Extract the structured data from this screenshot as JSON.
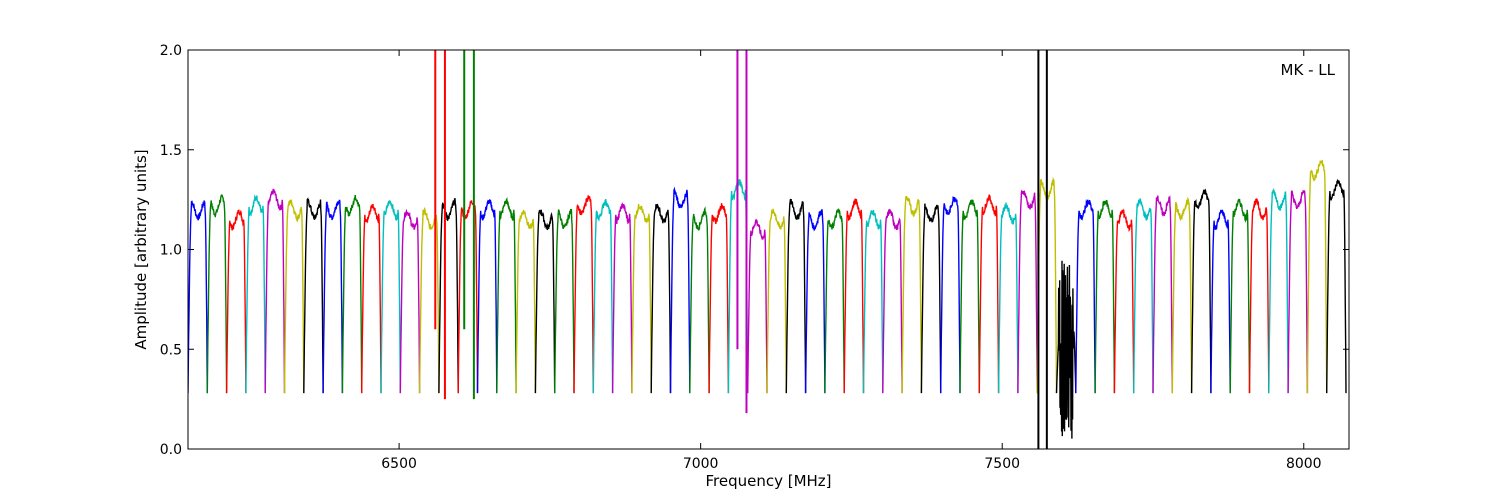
{
  "chart_data": {
    "type": "line",
    "title": "",
    "xlabel": "Frequency [MHz]",
    "ylabel": "Amplitude [arbitrary units]",
    "annotation": "MK - LL",
    "xlim": [
      6150,
      8075
    ],
    "ylim": [
      0.0,
      2.0
    ],
    "xticks": [
      6500,
      7000,
      7500,
      8000
    ],
    "xtick_labels": [
      "6500",
      "7000",
      "7500",
      "8000"
    ],
    "yticks": [
      0.0,
      0.5,
      1.0,
      1.5,
      2.0
    ],
    "ytick_labels": [
      "0.0",
      "0.5",
      "1.0",
      "1.5",
      "2.0"
    ],
    "grid": false,
    "legend": "none",
    "colors": [
      "#0000ff",
      "#008000",
      "#ff0000",
      "#00bfbf",
      "#bf00bf",
      "#bfbf00",
      "#000000"
    ],
    "channel_start_mhz": 6150,
    "channel_width_mhz": 32,
    "channel_count": 60,
    "series": [
      {
        "start": 6150,
        "end": 6182,
        "level": 1.2,
        "color": "#0000ff"
      },
      {
        "start": 6182,
        "end": 6214,
        "level": 1.22,
        "color": "#008000"
      },
      {
        "start": 6214,
        "end": 6246,
        "level": 1.15,
        "color": "#ff0000"
      },
      {
        "start": 6246,
        "end": 6278,
        "level": 1.22,
        "color": "#00bfbf"
      },
      {
        "start": 6278,
        "end": 6310,
        "level": 1.25,
        "color": "#bf00bf"
      },
      {
        "start": 6310,
        "end": 6342,
        "level": 1.2,
        "color": "#bfbf00"
      },
      {
        "start": 6342,
        "end": 6374,
        "level": 1.2,
        "color": "#000000"
      },
      {
        "start": 6374,
        "end": 6406,
        "level": 1.2,
        "color": "#0000ff"
      },
      {
        "start": 6406,
        "end": 6438,
        "level": 1.22,
        "color": "#008000"
      },
      {
        "start": 6438,
        "end": 6470,
        "level": 1.18,
        "color": "#ff0000"
      },
      {
        "start": 6470,
        "end": 6502,
        "level": 1.2,
        "color": "#00bfbf"
      },
      {
        "start": 6502,
        "end": 6534,
        "level": 1.15,
        "color": "#bf00bf"
      },
      {
        "start": 6534,
        "end": 6566,
        "level": 1.15,
        "color": "#bfbf00"
      },
      {
        "start": 6566,
        "end": 6598,
        "level": 1.2,
        "color": "#000000"
      },
      {
        "start": 6598,
        "end": 6630,
        "level": 1.2,
        "color": "#ff0000"
      },
      {
        "start": 6630,
        "end": 6662,
        "level": 1.2,
        "color": "#0000ff"
      },
      {
        "start": 6662,
        "end": 6694,
        "level": 1.2,
        "color": "#008000"
      },
      {
        "start": 6694,
        "end": 6726,
        "level": 1.15,
        "color": "#bfbf00"
      },
      {
        "start": 6726,
        "end": 6758,
        "level": 1.15,
        "color": "#000000"
      },
      {
        "start": 6758,
        "end": 6790,
        "level": 1.15,
        "color": "#008000"
      },
      {
        "start": 6790,
        "end": 6822,
        "level": 1.22,
        "color": "#ff0000"
      },
      {
        "start": 6822,
        "end": 6854,
        "level": 1.2,
        "color": "#00bfbf"
      },
      {
        "start": 6854,
        "end": 6886,
        "level": 1.18,
        "color": "#bf00bf"
      },
      {
        "start": 6886,
        "end": 6918,
        "level": 1.18,
        "color": "#bfbf00"
      },
      {
        "start": 6918,
        "end": 6950,
        "level": 1.18,
        "color": "#000000"
      },
      {
        "start": 6950,
        "end": 6982,
        "level": 1.25,
        "color": "#0000ff"
      },
      {
        "start": 6982,
        "end": 7014,
        "level": 1.15,
        "color": "#008000"
      },
      {
        "start": 7014,
        "end": 7046,
        "level": 1.18,
        "color": "#ff0000"
      },
      {
        "start": 7046,
        "end": 7078,
        "level": 1.3,
        "color": "#00bfbf"
      },
      {
        "start": 7078,
        "end": 7110,
        "level": 1.1,
        "color": "#bf00bf"
      },
      {
        "start": 7110,
        "end": 7142,
        "level": 1.15,
        "color": "#bfbf00"
      },
      {
        "start": 7142,
        "end": 7174,
        "level": 1.2,
        "color": "#000000"
      },
      {
        "start": 7174,
        "end": 7206,
        "level": 1.15,
        "color": "#0000ff"
      },
      {
        "start": 7206,
        "end": 7238,
        "level": 1.15,
        "color": "#008000"
      },
      {
        "start": 7238,
        "end": 7270,
        "level": 1.2,
        "color": "#ff0000"
      },
      {
        "start": 7270,
        "end": 7302,
        "level": 1.15,
        "color": "#00bfbf"
      },
      {
        "start": 7302,
        "end": 7334,
        "level": 1.15,
        "color": "#bf00bf"
      },
      {
        "start": 7334,
        "end": 7366,
        "level": 1.22,
        "color": "#bfbf00"
      },
      {
        "start": 7366,
        "end": 7398,
        "level": 1.18,
        "color": "#000000"
      },
      {
        "start": 7398,
        "end": 7430,
        "level": 1.22,
        "color": "#0000ff"
      },
      {
        "start": 7430,
        "end": 7462,
        "level": 1.2,
        "color": "#008000"
      },
      {
        "start": 7462,
        "end": 7494,
        "level": 1.22,
        "color": "#ff0000"
      },
      {
        "start": 7494,
        "end": 7526,
        "level": 1.18,
        "color": "#00bfbf"
      },
      {
        "start": 7526,
        "end": 7558,
        "level": 1.25,
        "color": "#bf00bf"
      },
      {
        "start": 7558,
        "end": 7590,
        "level": 1.3,
        "color": "#bfbf00"
      },
      {
        "start": 7590,
        "end": 7622,
        "level": 0.6,
        "color": "#000000"
      },
      {
        "start": 7622,
        "end": 7654,
        "level": 1.2,
        "color": "#0000ff"
      },
      {
        "start": 7654,
        "end": 7686,
        "level": 1.2,
        "color": "#008000"
      },
      {
        "start": 7686,
        "end": 7718,
        "level": 1.15,
        "color": "#ff0000"
      },
      {
        "start": 7718,
        "end": 7750,
        "level": 1.2,
        "color": "#00bfbf"
      },
      {
        "start": 7750,
        "end": 7782,
        "level": 1.22,
        "color": "#bf00bf"
      },
      {
        "start": 7782,
        "end": 7814,
        "level": 1.2,
        "color": "#bfbf00"
      },
      {
        "start": 7814,
        "end": 7846,
        "level": 1.25,
        "color": "#000000"
      },
      {
        "start": 7846,
        "end": 7878,
        "level": 1.15,
        "color": "#0000ff"
      },
      {
        "start": 7878,
        "end": 7910,
        "level": 1.2,
        "color": "#008000"
      },
      {
        "start": 7910,
        "end": 7942,
        "level": 1.2,
        "color": "#ff0000"
      },
      {
        "start": 7942,
        "end": 7974,
        "level": 1.25,
        "color": "#00bfbf"
      },
      {
        "start": 7974,
        "end": 8006,
        "level": 1.25,
        "color": "#bf00bf"
      },
      {
        "start": 8006,
        "end": 8038,
        "level": 1.4,
        "color": "#bfbf00"
      },
      {
        "start": 8038,
        "end": 8070,
        "level": 1.3,
        "color": "#000000"
      }
    ],
    "rfi_spikes": [
      {
        "x": 6560,
        "y_low": 0.6,
        "y_high": 2.0,
        "color": "#ff0000"
      },
      {
        "x": 6576,
        "y_low": 0.25,
        "y_high": 2.0,
        "color": "#ff0000"
      },
      {
        "x": 6608,
        "y_low": 0.6,
        "y_high": 2.0,
        "color": "#008000"
      },
      {
        "x": 6624,
        "y_low": 0.25,
        "y_high": 2.0,
        "color": "#008000"
      },
      {
        "x": 7061,
        "y_low": 0.5,
        "y_high": 2.0,
        "color": "#bf00bf"
      },
      {
        "x": 7076,
        "y_low": 0.18,
        "y_high": 2.0,
        "color": "#bf00bf"
      },
      {
        "x": 7560,
        "y_low": 0.0,
        "y_high": 2.0,
        "color": "#000000"
      },
      {
        "x": 7574,
        "y_low": 0.0,
        "y_high": 2.0,
        "color": "#000000"
      }
    ]
  }
}
